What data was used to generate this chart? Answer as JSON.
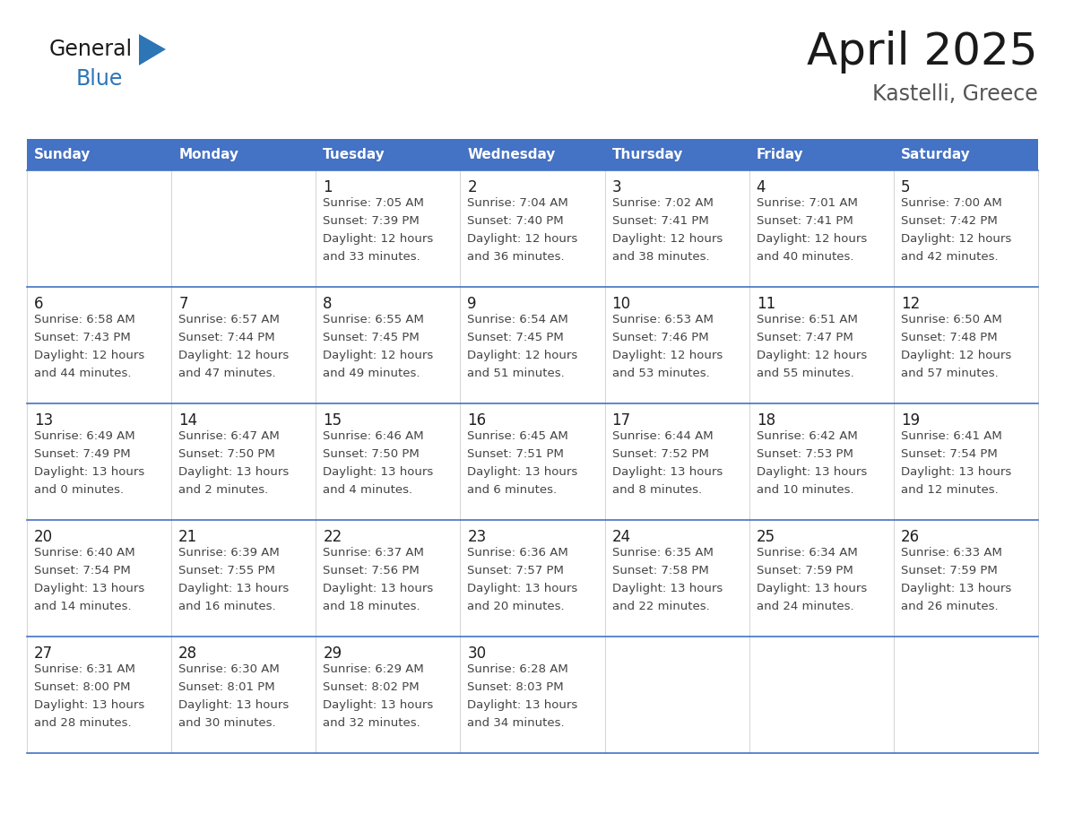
{
  "title": "April 2025",
  "subtitle": "Kastelli, Greece",
  "days_of_week": [
    "Sunday",
    "Monday",
    "Tuesday",
    "Wednesday",
    "Thursday",
    "Friday",
    "Saturday"
  ],
  "header_bg": "#4472C4",
  "header_text": "#FFFFFF",
  "cell_bg_light": "#FFFFFF",
  "day_number_color": "#1F1F1F",
  "text_color": "#444444",
  "line_color": "#4472C4",
  "title_color": "#1a1a1a",
  "subtitle_color": "#555555",
  "logo_general_color": "#1a1a1a",
  "logo_blue_color": "#2E75B6",
  "logo_triangle_color": "#2E75B6",
  "calendar_data": [
    [
      {
        "day": null,
        "sunrise": null,
        "sunset": null,
        "daylight": null
      },
      {
        "day": null,
        "sunrise": null,
        "sunset": null,
        "daylight": null
      },
      {
        "day": 1,
        "sunrise": "7:05 AM",
        "sunset": "7:39 PM",
        "daylight": "12 hours and 33 minutes"
      },
      {
        "day": 2,
        "sunrise": "7:04 AM",
        "sunset": "7:40 PM",
        "daylight": "12 hours and 36 minutes"
      },
      {
        "day": 3,
        "sunrise": "7:02 AM",
        "sunset": "7:41 PM",
        "daylight": "12 hours and 38 minutes"
      },
      {
        "day": 4,
        "sunrise": "7:01 AM",
        "sunset": "7:41 PM",
        "daylight": "12 hours and 40 minutes"
      },
      {
        "day": 5,
        "sunrise": "7:00 AM",
        "sunset": "7:42 PM",
        "daylight": "12 hours and 42 minutes"
      }
    ],
    [
      {
        "day": 6,
        "sunrise": "6:58 AM",
        "sunset": "7:43 PM",
        "daylight": "12 hours and 44 minutes"
      },
      {
        "day": 7,
        "sunrise": "6:57 AM",
        "sunset": "7:44 PM",
        "daylight": "12 hours and 47 minutes"
      },
      {
        "day": 8,
        "sunrise": "6:55 AM",
        "sunset": "7:45 PM",
        "daylight": "12 hours and 49 minutes"
      },
      {
        "day": 9,
        "sunrise": "6:54 AM",
        "sunset": "7:45 PM",
        "daylight": "12 hours and 51 minutes"
      },
      {
        "day": 10,
        "sunrise": "6:53 AM",
        "sunset": "7:46 PM",
        "daylight": "12 hours and 53 minutes"
      },
      {
        "day": 11,
        "sunrise": "6:51 AM",
        "sunset": "7:47 PM",
        "daylight": "12 hours and 55 minutes"
      },
      {
        "day": 12,
        "sunrise": "6:50 AM",
        "sunset": "7:48 PM",
        "daylight": "12 hours and 57 minutes"
      }
    ],
    [
      {
        "day": 13,
        "sunrise": "6:49 AM",
        "sunset": "7:49 PM",
        "daylight": "13 hours and 0 minutes"
      },
      {
        "day": 14,
        "sunrise": "6:47 AM",
        "sunset": "7:50 PM",
        "daylight": "13 hours and 2 minutes"
      },
      {
        "day": 15,
        "sunrise": "6:46 AM",
        "sunset": "7:50 PM",
        "daylight": "13 hours and 4 minutes"
      },
      {
        "day": 16,
        "sunrise": "6:45 AM",
        "sunset": "7:51 PM",
        "daylight": "13 hours and 6 minutes"
      },
      {
        "day": 17,
        "sunrise": "6:44 AM",
        "sunset": "7:52 PM",
        "daylight": "13 hours and 8 minutes"
      },
      {
        "day": 18,
        "sunrise": "6:42 AM",
        "sunset": "7:53 PM",
        "daylight": "13 hours and 10 minutes"
      },
      {
        "day": 19,
        "sunrise": "6:41 AM",
        "sunset": "7:54 PM",
        "daylight": "13 hours and 12 minutes"
      }
    ],
    [
      {
        "day": 20,
        "sunrise": "6:40 AM",
        "sunset": "7:54 PM",
        "daylight": "13 hours and 14 minutes"
      },
      {
        "day": 21,
        "sunrise": "6:39 AM",
        "sunset": "7:55 PM",
        "daylight": "13 hours and 16 minutes"
      },
      {
        "day": 22,
        "sunrise": "6:37 AM",
        "sunset": "7:56 PM",
        "daylight": "13 hours and 18 minutes"
      },
      {
        "day": 23,
        "sunrise": "6:36 AM",
        "sunset": "7:57 PM",
        "daylight": "13 hours and 20 minutes"
      },
      {
        "day": 24,
        "sunrise": "6:35 AM",
        "sunset": "7:58 PM",
        "daylight": "13 hours and 22 minutes"
      },
      {
        "day": 25,
        "sunrise": "6:34 AM",
        "sunset": "7:59 PM",
        "daylight": "13 hours and 24 minutes"
      },
      {
        "day": 26,
        "sunrise": "6:33 AM",
        "sunset": "7:59 PM",
        "daylight": "13 hours and 26 minutes"
      }
    ],
    [
      {
        "day": 27,
        "sunrise": "6:31 AM",
        "sunset": "8:00 PM",
        "daylight": "13 hours and 28 minutes"
      },
      {
        "day": 28,
        "sunrise": "6:30 AM",
        "sunset": "8:01 PM",
        "daylight": "13 hours and 30 minutes"
      },
      {
        "day": 29,
        "sunrise": "6:29 AM",
        "sunset": "8:02 PM",
        "daylight": "13 hours and 32 minutes"
      },
      {
        "day": 30,
        "sunrise": "6:28 AM",
        "sunset": "8:03 PM",
        "daylight": "13 hours and 34 minutes"
      },
      {
        "day": null,
        "sunrise": null,
        "sunset": null,
        "daylight": null
      },
      {
        "day": null,
        "sunrise": null,
        "sunset": null,
        "daylight": null
      },
      {
        "day": null,
        "sunrise": null,
        "sunset": null,
        "daylight": null
      }
    ]
  ]
}
